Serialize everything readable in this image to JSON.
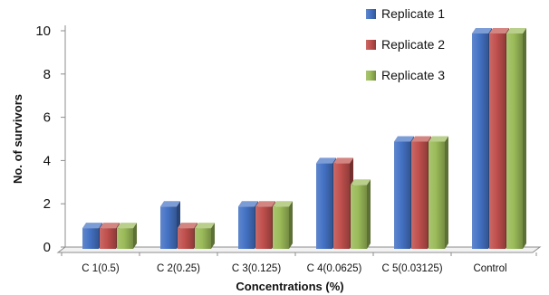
{
  "chart_data": {
    "type": "bar",
    "style": "3d-clustered-column",
    "title": "",
    "xlabel": "Concentrations (%)",
    "ylabel": "No. of survivors",
    "ylim": [
      0,
      10
    ],
    "yticks": [
      0,
      2,
      4,
      6,
      8,
      10
    ],
    "grid": false,
    "legend_position": "top-right",
    "categories": [
      "C 1(0.5)",
      "C 2(0.25)",
      "C 3(0.125)",
      "C 4(0.0625)",
      "C 5(0.03125)",
      "Control"
    ],
    "series": [
      {
        "name": "Replicate 1",
        "color": "#4472C4",
        "values": [
          1,
          2,
          2,
          4,
          5,
          10
        ]
      },
      {
        "name": "Replicate 2",
        "color": "#C0504D",
        "values": [
          1,
          1,
          2,
          4,
          5,
          10
        ]
      },
      {
        "name": "Replicate 3",
        "color": "#9BBB59",
        "values": [
          1,
          1,
          2,
          3,
          5,
          10
        ]
      }
    ]
  }
}
